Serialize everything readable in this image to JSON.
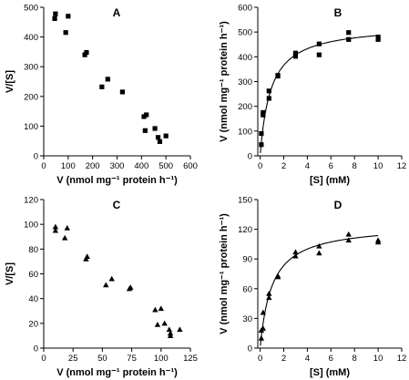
{
  "chart_data": [
    {
      "type": "scatter",
      "panel": "A",
      "xlabel": "V (nmol mg⁻¹ protein h⁻¹)",
      "ylabel": "V/[S]",
      "xlim": [
        0,
        600
      ],
      "ylim": [
        0,
        500
      ],
      "xticks": [
        0,
        100,
        200,
        300,
        400,
        500,
        600
      ],
      "yticks": [
        0,
        100,
        200,
        300,
        400,
        500
      ],
      "marker": "square",
      "grid": false,
      "fit": null,
      "x": [
        45,
        48,
        90,
        100,
        168,
        175,
        238,
        262,
        322,
        410,
        415,
        420,
        455,
        468,
        475,
        500
      ],
      "y": [
        462,
        478,
        415,
        470,
        340,
        348,
        232,
        258,
        215,
        132,
        85,
        138,
        92,
        62,
        48,
        67
      ]
    },
    {
      "type": "scatter",
      "panel": "B",
      "xlabel": "[S] (mM)",
      "ylabel": "V (nmol mg⁻¹ protein h⁻¹)",
      "xlim": [
        -0.2,
        12
      ],
      "ylim": [
        0,
        600
      ],
      "xticks": [
        0,
        2,
        4,
        6,
        8,
        10,
        12
      ],
      "yticks": [
        0,
        100,
        200,
        300,
        400,
        500,
        600
      ],
      "marker": "square",
      "grid": false,
      "fit": {
        "model": "michaelis-menten",
        "vmax": 530,
        "km": 0.9,
        "x_range": [
          0.02,
          10
        ]
      },
      "x": [
        0.1,
        0.1,
        0.25,
        0.25,
        0.75,
        0.75,
        1.5,
        1.5,
        3,
        3,
        5,
        5,
        7.5,
        7.5,
        10,
        10
      ],
      "y": [
        45,
        90,
        165,
        175,
        232,
        262,
        325,
        322,
        415,
        402,
        452,
        408,
        498,
        470,
        480,
        470
      ]
    },
    {
      "type": "scatter",
      "panel": "C",
      "xlabel": "V (nmol mg⁻¹ protein h⁻¹)",
      "ylabel": "V/[S]",
      "xlim": [
        0,
        125
      ],
      "ylim": [
        0,
        120
      ],
      "xticks": [
        0,
        25,
        50,
        75,
        100,
        125
      ],
      "yticks": [
        0,
        20,
        40,
        60,
        80,
        100,
        120
      ],
      "marker": "triangle",
      "grid": false,
      "fit": null,
      "x": [
        10,
        10,
        18,
        20,
        36,
        37,
        53,
        58,
        73,
        74,
        95,
        97,
        100,
        103,
        107,
        108,
        108,
        116
      ],
      "y": [
        95,
        98,
        89,
        97,
        72,
        74,
        51,
        56,
        48,
        49,
        31,
        19,
        32,
        20,
        15,
        12,
        10,
        15
      ]
    },
    {
      "type": "scatter",
      "panel": "D",
      "xlabel": "[S] (mM)",
      "ylabel": "V (nmol mg⁻¹ protein h⁻¹)",
      "xlim": [
        -0.2,
        12
      ],
      "ylim": [
        0,
        150
      ],
      "xticks": [
        0,
        2,
        4,
        6,
        8,
        10,
        12
      ],
      "yticks": [
        0,
        30,
        60,
        90,
        120,
        150
      ],
      "marker": "triangle",
      "grid": false,
      "fit": {
        "model": "michaelis-menten",
        "vmax": 125,
        "km": 1.0,
        "x_range": [
          0.02,
          10
        ]
      },
      "x": [
        0.1,
        0.1,
        0.25,
        0.25,
        0.75,
        0.75,
        1.5,
        1.5,
        3,
        3,
        5,
        5,
        7.5,
        7.5,
        10,
        10
      ],
      "y": [
        10,
        18,
        20,
        36,
        51,
        55,
        73,
        72,
        93,
        97,
        96,
        103,
        109,
        115,
        107,
        109
      ]
    }
  ]
}
